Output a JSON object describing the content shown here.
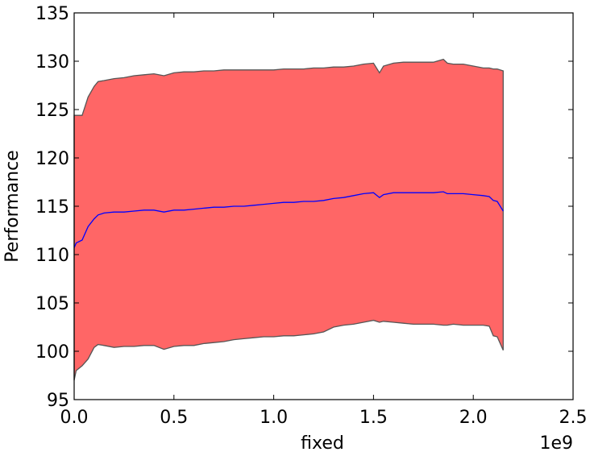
{
  "chart_data": {
    "type": "area",
    "xlabel": "fixed",
    "ylabel": "Performance",
    "x_offset_label": "1e9",
    "xlim": [
      0.0,
      2.5
    ],
    "ylim": [
      95,
      135
    ],
    "x_ticks": [
      "0.0",
      "0.5",
      "1.0",
      "1.5",
      "2.0",
      "2.5"
    ],
    "y_ticks": [
      "95",
      "100",
      "105",
      "110",
      "115",
      "120",
      "125",
      "130",
      "135"
    ],
    "grid": false,
    "legend": "none",
    "colors": {
      "band_fill": "#ff6666",
      "band_edge": "#555555",
      "mean_line": "#0000ff"
    },
    "series": [
      {
        "kind": "band",
        "x": [
          0.0,
          0.01,
          0.04,
          0.07,
          0.1,
          0.12,
          0.15,
          0.2,
          0.25,
          0.3,
          0.35,
          0.4,
          0.45,
          0.5,
          0.55,
          0.6,
          0.65,
          0.7,
          0.75,
          0.8,
          0.85,
          0.9,
          0.95,
          1.0,
          1.05,
          1.1,
          1.15,
          1.2,
          1.25,
          1.3,
          1.35,
          1.4,
          1.45,
          1.5,
          1.53,
          1.55,
          1.6,
          1.65,
          1.7,
          1.75,
          1.8,
          1.85,
          1.87,
          1.9,
          1.95,
          2.0,
          2.05,
          2.08,
          2.1,
          2.12,
          2.15
        ],
        "lower": [
          97.0,
          98.0,
          98.5,
          99.2,
          100.4,
          100.7,
          100.6,
          100.4,
          100.5,
          100.5,
          100.6,
          100.6,
          100.2,
          100.5,
          100.6,
          100.6,
          100.8,
          100.9,
          101.0,
          101.2,
          101.3,
          101.4,
          101.5,
          101.5,
          101.6,
          101.6,
          101.7,
          101.8,
          102.0,
          102.5,
          102.7,
          102.8,
          103.0,
          103.2,
          103.0,
          103.1,
          103.0,
          102.9,
          102.8,
          102.8,
          102.8,
          102.7,
          102.7,
          102.8,
          102.7,
          102.7,
          102.7,
          102.6,
          101.6,
          101.5,
          100.1
        ],
        "upper": [
          124.4,
          124.4,
          124.4,
          126.3,
          127.4,
          127.9,
          128.0,
          128.2,
          128.3,
          128.5,
          128.6,
          128.7,
          128.5,
          128.8,
          128.9,
          128.9,
          129.0,
          129.0,
          129.1,
          129.1,
          129.1,
          129.1,
          129.1,
          129.1,
          129.2,
          129.2,
          129.2,
          129.3,
          129.3,
          129.4,
          129.4,
          129.5,
          129.7,
          129.8,
          128.8,
          129.5,
          129.8,
          129.9,
          129.9,
          129.9,
          129.9,
          130.2,
          129.8,
          129.7,
          129.7,
          129.5,
          129.3,
          129.3,
          129.2,
          129.2,
          129.0
        ]
      },
      {
        "kind": "line",
        "x": [
          0.0,
          0.01,
          0.04,
          0.07,
          0.1,
          0.12,
          0.15,
          0.2,
          0.25,
          0.3,
          0.35,
          0.4,
          0.45,
          0.5,
          0.55,
          0.6,
          0.65,
          0.7,
          0.75,
          0.8,
          0.85,
          0.9,
          0.95,
          1.0,
          1.05,
          1.1,
          1.15,
          1.2,
          1.25,
          1.3,
          1.35,
          1.4,
          1.45,
          1.5,
          1.53,
          1.55,
          1.6,
          1.65,
          1.7,
          1.75,
          1.8,
          1.85,
          1.87,
          1.9,
          1.95,
          2.0,
          2.05,
          2.08,
          2.1,
          2.12,
          2.15
        ],
        "y": [
          110.7,
          111.2,
          111.5,
          112.9,
          113.7,
          114.1,
          114.3,
          114.4,
          114.4,
          114.5,
          114.6,
          114.6,
          114.4,
          114.6,
          114.6,
          114.7,
          114.8,
          114.9,
          114.9,
          115.0,
          115.0,
          115.1,
          115.2,
          115.3,
          115.4,
          115.4,
          115.5,
          115.5,
          115.6,
          115.8,
          115.9,
          116.1,
          116.3,
          116.4,
          115.9,
          116.2,
          116.4,
          116.4,
          116.4,
          116.4,
          116.4,
          116.5,
          116.3,
          116.3,
          116.3,
          116.2,
          116.1,
          116.0,
          115.6,
          115.5,
          114.5
        ]
      }
    ]
  }
}
